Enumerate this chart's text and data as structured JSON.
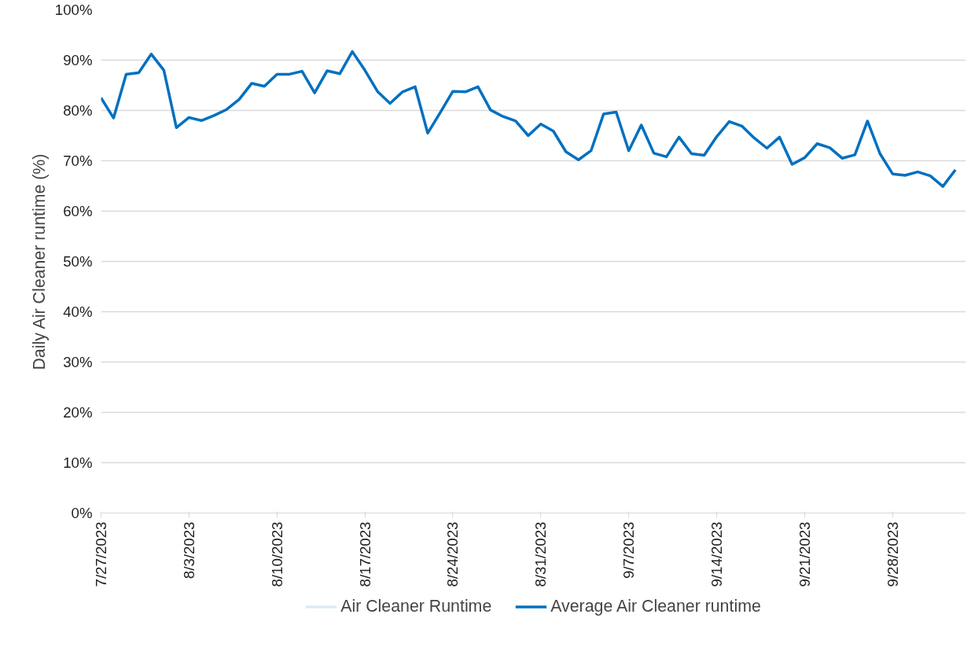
{
  "chart_data": {
    "type": "line",
    "ylabel": "Daily Air Cleaner runtime (%)",
    "x": [
      "2023-07-27",
      "2023-07-28",
      "2023-07-29",
      "2023-07-30",
      "2023-07-31",
      "2023-08-01",
      "2023-08-02",
      "2023-08-03",
      "2023-08-04",
      "2023-08-05",
      "2023-08-06",
      "2023-08-07",
      "2023-08-08",
      "2023-08-09",
      "2023-08-10",
      "2023-08-11",
      "2023-08-12",
      "2023-08-13",
      "2023-08-14",
      "2023-08-15",
      "2023-08-16",
      "2023-08-17",
      "2023-08-18",
      "2023-08-19",
      "2023-08-20",
      "2023-08-21",
      "2023-08-22",
      "2023-08-23",
      "2023-08-24",
      "2023-08-25",
      "2023-08-26",
      "2023-08-27",
      "2023-08-28",
      "2023-08-29",
      "2023-08-30",
      "2023-08-31",
      "2023-09-01",
      "2023-09-02",
      "2023-09-03",
      "2023-09-04",
      "2023-09-05",
      "2023-09-06",
      "2023-09-07",
      "2023-09-08",
      "2023-09-09",
      "2023-09-10",
      "2023-09-11",
      "2023-09-12",
      "2023-09-13",
      "2023-09-14",
      "2023-09-15",
      "2023-09-16",
      "2023-09-17",
      "2023-09-18",
      "2023-09-19",
      "2023-09-20",
      "2023-09-21",
      "2023-09-22",
      "2023-09-23",
      "2023-09-24",
      "2023-09-25",
      "2023-09-26",
      "2023-09-27",
      "2023-09-28",
      "2023-09-29",
      "2023-09-30",
      "2023-10-01",
      "2023-10-02",
      "2023-10-03"
    ],
    "series": [
      {
        "name": "Air Cleaner Runtime",
        "color": "#deebf7",
        "values": [
          null,
          null,
          null,
          null,
          null,
          null,
          null,
          null,
          null,
          null,
          null,
          null,
          null,
          null,
          null,
          null,
          null,
          null,
          null,
          null,
          null,
          null,
          null,
          null,
          null,
          null,
          null,
          null,
          null,
          null,
          null,
          null,
          null,
          null,
          null,
          null,
          null,
          null,
          null,
          null,
          null,
          null,
          null,
          null,
          null,
          null,
          null,
          null,
          null,
          null,
          null,
          null,
          null,
          null,
          null,
          null,
          null,
          null,
          null,
          null,
          null,
          null,
          null,
          null,
          null,
          null,
          null,
          null,
          null
        ]
      },
      {
        "name": "Average Air Cleaner runtime",
        "color": "#0070c0",
        "values": [
          82.5,
          78.5,
          87.2,
          87.5,
          91.2,
          88.0,
          76.6,
          78.6,
          78.0,
          79.0,
          80.2,
          82.2,
          85.4,
          84.8,
          87.2,
          87.2,
          87.8,
          83.5,
          87.9,
          87.3,
          91.7,
          88.0,
          83.8,
          81.4,
          83.7,
          84.7,
          75.5,
          79.6,
          83.8,
          83.7,
          84.7,
          80.1,
          78.8,
          77.9,
          75.0,
          77.3,
          75.9,
          71.8,
          70.2,
          72.0,
          79.3,
          79.7,
          72.0,
          77.1,
          71.5,
          70.8,
          74.7,
          71.4,
          71.1,
          74.8,
          77.8,
          76.9,
          74.5,
          72.5,
          74.7,
          69.3,
          70.6,
          73.4,
          72.6,
          70.5,
          71.2,
          77.9,
          71.4,
          67.4,
          67.1,
          67.8,
          67.0,
          64.9,
          68.2
        ]
      }
    ],
    "xlim": [
      "2023-07-27",
      "2023-10-03T20:00"
    ],
    "xticks": [
      {
        "value": "2023-07-27",
        "label": "7/27/2023"
      },
      {
        "value": "2023-08-03",
        "label": "8/3/2023"
      },
      {
        "value": "2023-08-10",
        "label": "8/10/2023"
      },
      {
        "value": "2023-08-17",
        "label": "8/17/2023"
      },
      {
        "value": "2023-08-24",
        "label": "8/24/2023"
      },
      {
        "value": "2023-08-31",
        "label": "8/31/2023"
      },
      {
        "value": "2023-09-07",
        "label": "9/7/2023"
      },
      {
        "value": "2023-09-14",
        "label": "9/14/2023"
      },
      {
        "value": "2023-09-21",
        "label": "9/21/2023"
      },
      {
        "value": "2023-09-28",
        "label": "9/28/2023"
      }
    ],
    "ylim": [
      0,
      100
    ],
    "yticks": [
      {
        "value": 0,
        "label": "0%"
      },
      {
        "value": 10,
        "label": "10%"
      },
      {
        "value": 20,
        "label": "20%"
      },
      {
        "value": 30,
        "label": "30%"
      },
      {
        "value": 40,
        "label": "40%"
      },
      {
        "value": 50,
        "label": "50%"
      },
      {
        "value": 60,
        "label": "60%"
      },
      {
        "value": 70,
        "label": "70%"
      },
      {
        "value": 80,
        "label": "80%"
      },
      {
        "value": 90,
        "label": "90%"
      },
      {
        "value": 100,
        "label": "100%"
      }
    ],
    "grid": "y",
    "legend": "bottom",
    "marker": "none",
    "line_style": "solid"
  }
}
